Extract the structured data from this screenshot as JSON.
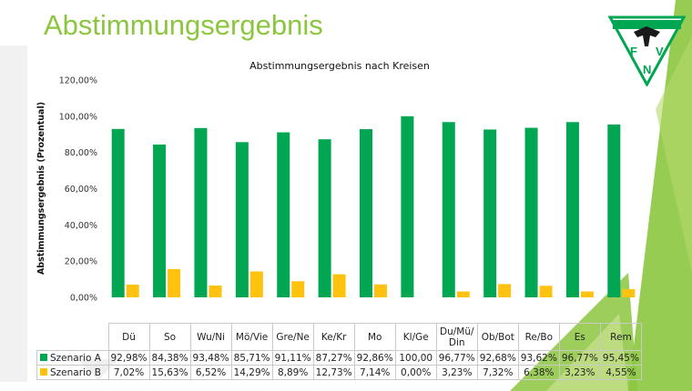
{
  "page": {
    "title": "Abstimmungsergebnis"
  },
  "colors": {
    "accent": "#8cc63f",
    "series_a": "#00a651",
    "series_b": "#ffc20e"
  },
  "logo": {
    "letters": [
      "F",
      "V",
      "N"
    ],
    "icon": "fvn-eagle-logo"
  },
  "chart_data": {
    "type": "bar",
    "title": "Abstimmungsergebnis nach Kreisen",
    "ylabel": "Abstimmungsergebnis (Prozentual)",
    "xlabel": "",
    "ylim": [
      0,
      120
    ],
    "yticks": [
      0,
      20,
      40,
      60,
      80,
      100,
      120
    ],
    "ytick_labels": [
      "0,00%",
      "20,00%",
      "40,00%",
      "60,00%",
      "80,00%",
      "100,00%",
      "120,00%"
    ],
    "grid": false,
    "legend": "data-table",
    "categories": [
      "Dü",
      "So",
      "Wu/Ni",
      "Mö/Vie",
      "Gre/Ne",
      "Ke/Kr",
      "Mo",
      "Kl/Ge",
      "Du/Mü/Din",
      "Ob/Bot",
      "Re/Bo",
      "Es",
      "Rem"
    ],
    "category_labels": [
      [
        "Dü"
      ],
      [
        "So"
      ],
      [
        "Wu/Ni"
      ],
      [
        "Mö/Vie"
      ],
      [
        "Gre/Ne"
      ],
      [
        "Ke/Kr"
      ],
      [
        "Mo"
      ],
      [
        "Kl/Ge"
      ],
      [
        "Du/Mü/",
        "Din"
      ],
      [
        "Ob/Bot"
      ],
      [
        "Re/Bo"
      ],
      [
        "Es"
      ],
      [
        "Rem"
      ]
    ],
    "series": [
      {
        "name": "Szenario A",
        "color": "#00a651",
        "values": [
          92.98,
          84.38,
          93.48,
          85.71,
          91.11,
          87.27,
          92.86,
          100.0,
          96.77,
          92.68,
          93.62,
          96.77,
          95.45
        ],
        "labels": [
          "92,98%",
          "84,38%",
          "93,48%",
          "85,71%",
          "91,11%",
          "87,27%",
          "92,86%",
          "100,00",
          "96,77%",
          "92,68%",
          "93,62%",
          "96,77%",
          "95,45%"
        ]
      },
      {
        "name": "Szenario B",
        "color": "#ffc20e",
        "values": [
          7.02,
          15.63,
          6.52,
          14.29,
          8.89,
          12.73,
          7.14,
          0.0,
          3.23,
          7.32,
          6.38,
          3.23,
          4.55
        ],
        "labels": [
          "7,02%",
          "15,63%",
          "6,52%",
          "14,29%",
          "8,89%",
          "12,73%",
          "7,14%",
          "0,00%",
          "3,23%",
          "7,32%",
          "6,38%",
          "3,23%",
          "4,55%"
        ]
      }
    ]
  }
}
